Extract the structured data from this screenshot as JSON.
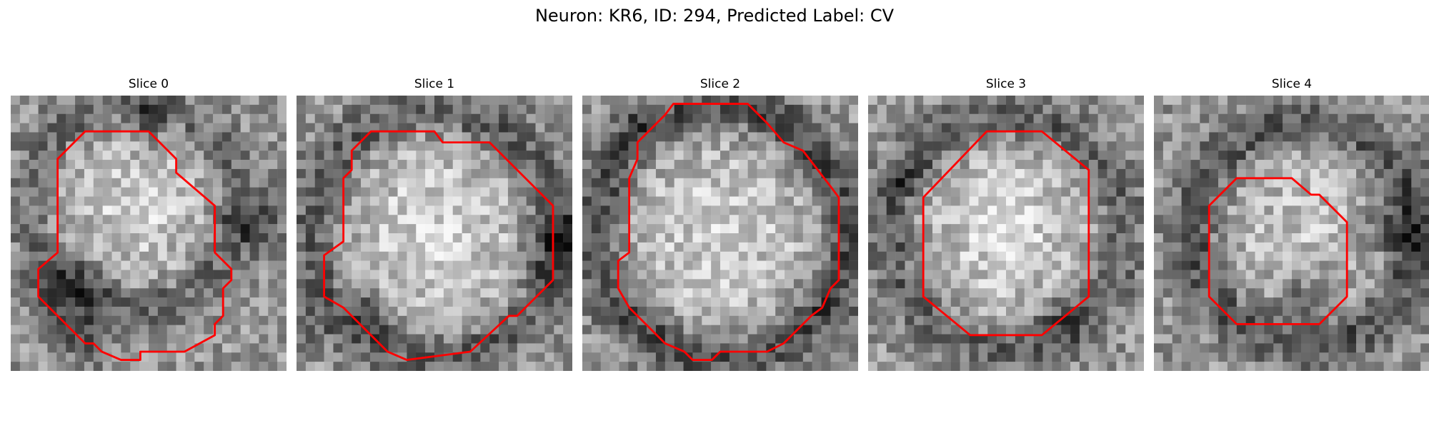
{
  "figure": {
    "title": "Neuron: KR6, ID: 294, Predicted Label: CV"
  },
  "image": {
    "colormap": "grayscale",
    "contour_color": "#ff0000"
  },
  "slices": [
    {
      "title": "Slice 0",
      "seed": 1101,
      "ring_center": [
        0.45,
        0.4
      ],
      "ring_radius": 0.37,
      "ring_strength": 40,
      "inner_brightness": 50,
      "dark_blobs": [
        [
          0.23,
          0.71,
          0.1,
          70
        ],
        [
          0.49,
          0.1,
          0.06,
          60
        ],
        [
          0.87,
          0.46,
          0.08,
          60
        ],
        [
          0.27,
          0.9,
          0.06,
          50
        ]
      ],
      "contour": [
        [
          0.27,
          0.13
        ],
        [
          0.5,
          0.13
        ],
        [
          0.6,
          0.23
        ],
        [
          0.6,
          0.28
        ],
        [
          0.74,
          0.4
        ],
        [
          0.74,
          0.57
        ],
        [
          0.8,
          0.63
        ],
        [
          0.8,
          0.67
        ],
        [
          0.77,
          0.7
        ],
        [
          0.77,
          0.8
        ],
        [
          0.74,
          0.83
        ],
        [
          0.74,
          0.87
        ],
        [
          0.63,
          0.93
        ],
        [
          0.47,
          0.93
        ],
        [
          0.47,
          0.96
        ],
        [
          0.4,
          0.96
        ],
        [
          0.33,
          0.93
        ],
        [
          0.3,
          0.9
        ],
        [
          0.27,
          0.9
        ],
        [
          0.2,
          0.83
        ],
        [
          0.17,
          0.8
        ],
        [
          0.1,
          0.73
        ],
        [
          0.1,
          0.63
        ],
        [
          0.17,
          0.57
        ],
        [
          0.17,
          0.23
        ]
      ]
    },
    {
      "title": "Slice 1",
      "seed": 2207,
      "ring_center": [
        0.5,
        0.5
      ],
      "ring_radius": 0.44,
      "ring_strength": 55,
      "inner_brightness": 55,
      "dark_blobs": [
        [
          0.95,
          0.53,
          0.08,
          80
        ],
        [
          0.27,
          0.8,
          0.06,
          60
        ],
        [
          0.05,
          0.85,
          0.05,
          40
        ]
      ],
      "contour": [
        [
          0.27,
          0.13
        ],
        [
          0.5,
          0.13
        ],
        [
          0.53,
          0.17
        ],
        [
          0.7,
          0.17
        ],
        [
          0.93,
          0.4
        ],
        [
          0.93,
          0.67
        ],
        [
          0.8,
          0.8
        ],
        [
          0.77,
          0.8
        ],
        [
          0.63,
          0.93
        ],
        [
          0.4,
          0.96
        ],
        [
          0.33,
          0.93
        ],
        [
          0.3,
          0.9
        ],
        [
          0.23,
          0.83
        ],
        [
          0.17,
          0.77
        ],
        [
          0.1,
          0.73
        ],
        [
          0.1,
          0.58
        ],
        [
          0.17,
          0.53
        ],
        [
          0.17,
          0.3
        ],
        [
          0.2,
          0.27
        ],
        [
          0.2,
          0.2
        ]
      ]
    },
    {
      "title": "Slice 2",
      "seed": 3313,
      "ring_center": [
        0.5,
        0.5
      ],
      "ring_radius": 0.45,
      "ring_strength": 70,
      "inner_brightness": 50,
      "dark_blobs": [
        [
          0.18,
          0.12,
          0.05,
          40
        ],
        [
          0.93,
          0.8,
          0.05,
          40
        ]
      ],
      "contour": [
        [
          0.33,
          0.03
        ],
        [
          0.6,
          0.03
        ],
        [
          0.67,
          0.1
        ],
        [
          0.73,
          0.17
        ],
        [
          0.8,
          0.2
        ],
        [
          0.9,
          0.33
        ],
        [
          0.93,
          0.37
        ],
        [
          0.93,
          0.67
        ],
        [
          0.9,
          0.7
        ],
        [
          0.87,
          0.77
        ],
        [
          0.83,
          0.8
        ],
        [
          0.8,
          0.83
        ],
        [
          0.73,
          0.9
        ],
        [
          0.67,
          0.93
        ],
        [
          0.5,
          0.93
        ],
        [
          0.47,
          0.96
        ],
        [
          0.4,
          0.96
        ],
        [
          0.37,
          0.93
        ],
        [
          0.3,
          0.9
        ],
        [
          0.23,
          0.83
        ],
        [
          0.17,
          0.77
        ],
        [
          0.13,
          0.7
        ],
        [
          0.13,
          0.6
        ],
        [
          0.17,
          0.57
        ],
        [
          0.17,
          0.3
        ],
        [
          0.2,
          0.23
        ],
        [
          0.2,
          0.17
        ],
        [
          0.27,
          0.1
        ],
        [
          0.3,
          0.07
        ]
      ]
    },
    {
      "title": "Slice 3",
      "seed": 4421,
      "ring_center": [
        0.5,
        0.5
      ],
      "ring_radius": 0.41,
      "ring_strength": 55,
      "inner_brightness": 55,
      "dark_blobs": [
        [
          0.7,
          0.82,
          0.06,
          50
        ],
        [
          0.12,
          0.3,
          0.05,
          40
        ]
      ],
      "contour": [
        [
          0.43,
          0.13
        ],
        [
          0.63,
          0.13
        ],
        [
          0.8,
          0.27
        ],
        [
          0.8,
          0.73
        ],
        [
          0.63,
          0.87
        ],
        [
          0.37,
          0.87
        ],
        [
          0.2,
          0.73
        ],
        [
          0.2,
          0.37
        ]
      ]
    },
    {
      "title": "Slice 4",
      "seed": 5531,
      "ring_center": [
        0.55,
        0.5
      ],
      "ring_radius": 0.4,
      "ring_strength": 65,
      "inner_brightness": 35,
      "dark_blobs": [
        [
          0.88,
          0.47,
          0.08,
          70
        ],
        [
          0.55,
          0.72,
          0.08,
          60
        ]
      ],
      "contour": [
        [
          0.3,
          0.3
        ],
        [
          0.5,
          0.3
        ],
        [
          0.57,
          0.36
        ],
        [
          0.6,
          0.36
        ],
        [
          0.7,
          0.46
        ],
        [
          0.7,
          0.73
        ],
        [
          0.6,
          0.83
        ],
        [
          0.3,
          0.83
        ],
        [
          0.2,
          0.73
        ],
        [
          0.2,
          0.4
        ]
      ]
    }
  ]
}
